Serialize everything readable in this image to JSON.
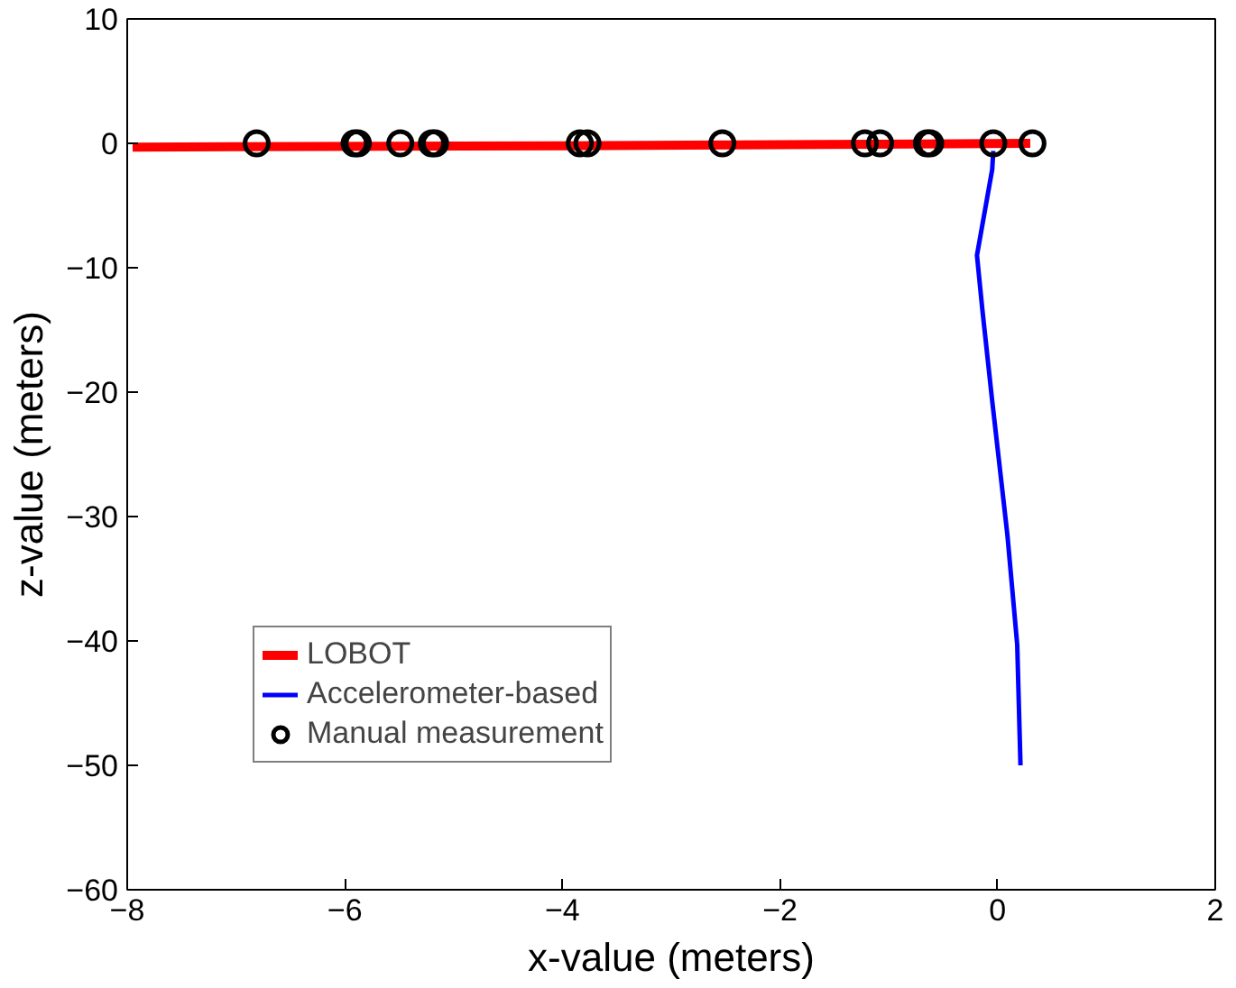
{
  "chart_data": {
    "type": "line",
    "xlabel": "x-value (meters)",
    "ylabel": "z-value (meters)",
    "xlim": [
      -8,
      2
    ],
    "ylim": [
      -60,
      10
    ],
    "xticks": [
      -8,
      -6,
      -4,
      -2,
      0,
      2
    ],
    "yticks": [
      -60,
      -50,
      -40,
      -30,
      -20,
      -10,
      0,
      10
    ],
    "grid": false,
    "legend": "bottom left",
    "series": [
      {
        "name": "LOBOT",
        "color": "#ff0000",
        "x": [
          -7.95,
          -4,
          0.3
        ],
        "values": [
          -0.3,
          -0.2,
          0
        ]
      },
      {
        "name": "Accelerometer-based",
        "color": "#0000ff",
        "x": [
          -0.04,
          -0.05,
          -0.19,
          -0.14,
          -0.05,
          0.09,
          0.18,
          0.21
        ],
        "values": [
          -0.6,
          -2.1,
          -9.0,
          -13.4,
          -20.7,
          -31.5,
          -40.3,
          -50
        ]
      },
      {
        "name": "Manual measurement",
        "color": "#000000",
        "type": "scatter",
        "marker": "circle",
        "x": [
          -6.81,
          -5.91,
          -5.88,
          -5.49,
          -5.2,
          -5.17,
          -3.84,
          -3.77,
          -2.53,
          -1.22,
          -1.08,
          -0.65,
          -0.62,
          -0.04,
          0.32
        ],
        "values": [
          0,
          0,
          0,
          0,
          0,
          0,
          0,
          0,
          0,
          0,
          0,
          0,
          0,
          0,
          0
        ]
      }
    ]
  }
}
